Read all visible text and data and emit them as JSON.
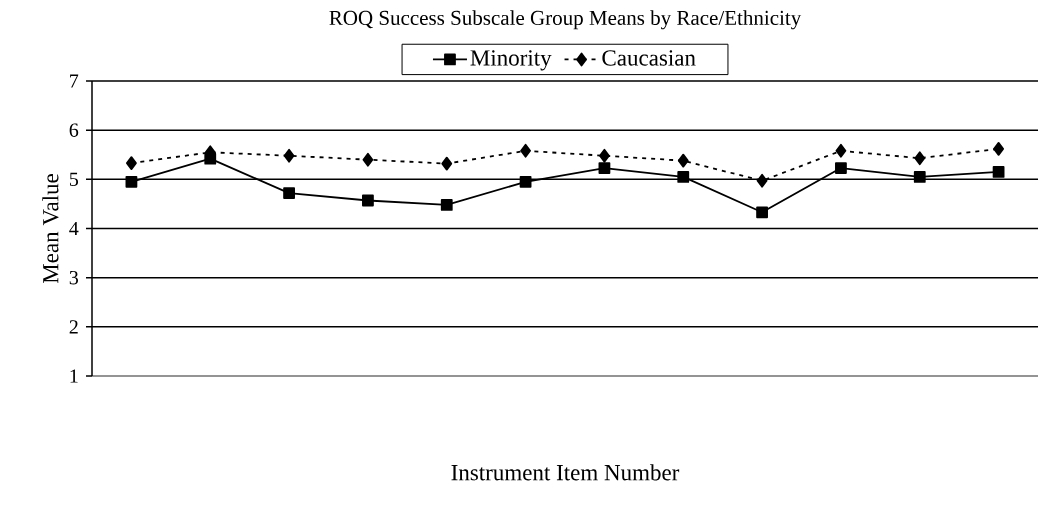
{
  "chart_data": {
    "type": "line",
    "title": "ROQ Success Subscale Group Means by Race/Ethnicity",
    "xlabel": "Instrument Item Number",
    "ylabel": "Mean Value",
    "categories": [
      null,
      null,
      null,
      null,
      null,
      null,
      null,
      null,
      null,
      null,
      null,
      null
    ],
    "series": [
      {
        "name": "Minority",
        "color": "#000000",
        "marker": "square",
        "line_style": "solid",
        "values": [
          4.95,
          5.42,
          4.72,
          4.57,
          4.48,
          4.95,
          5.23,
          5.05,
          4.33,
          5.23,
          5.05,
          5.15
        ]
      },
      {
        "name": "Caucasian",
        "color": "#000000",
        "marker": "diamond",
        "line_style": "dotted",
        "values": [
          5.33,
          5.55,
          5.48,
          5.4,
          5.32,
          5.58,
          5.48,
          5.38,
          4.97,
          5.58,
          5.43,
          5.62
        ]
      }
    ],
    "ylim": [
      1,
      7
    ],
    "yticks": [
      1,
      2,
      3,
      4,
      5,
      6,
      7
    ],
    "grid": "y",
    "legend": "top"
  }
}
